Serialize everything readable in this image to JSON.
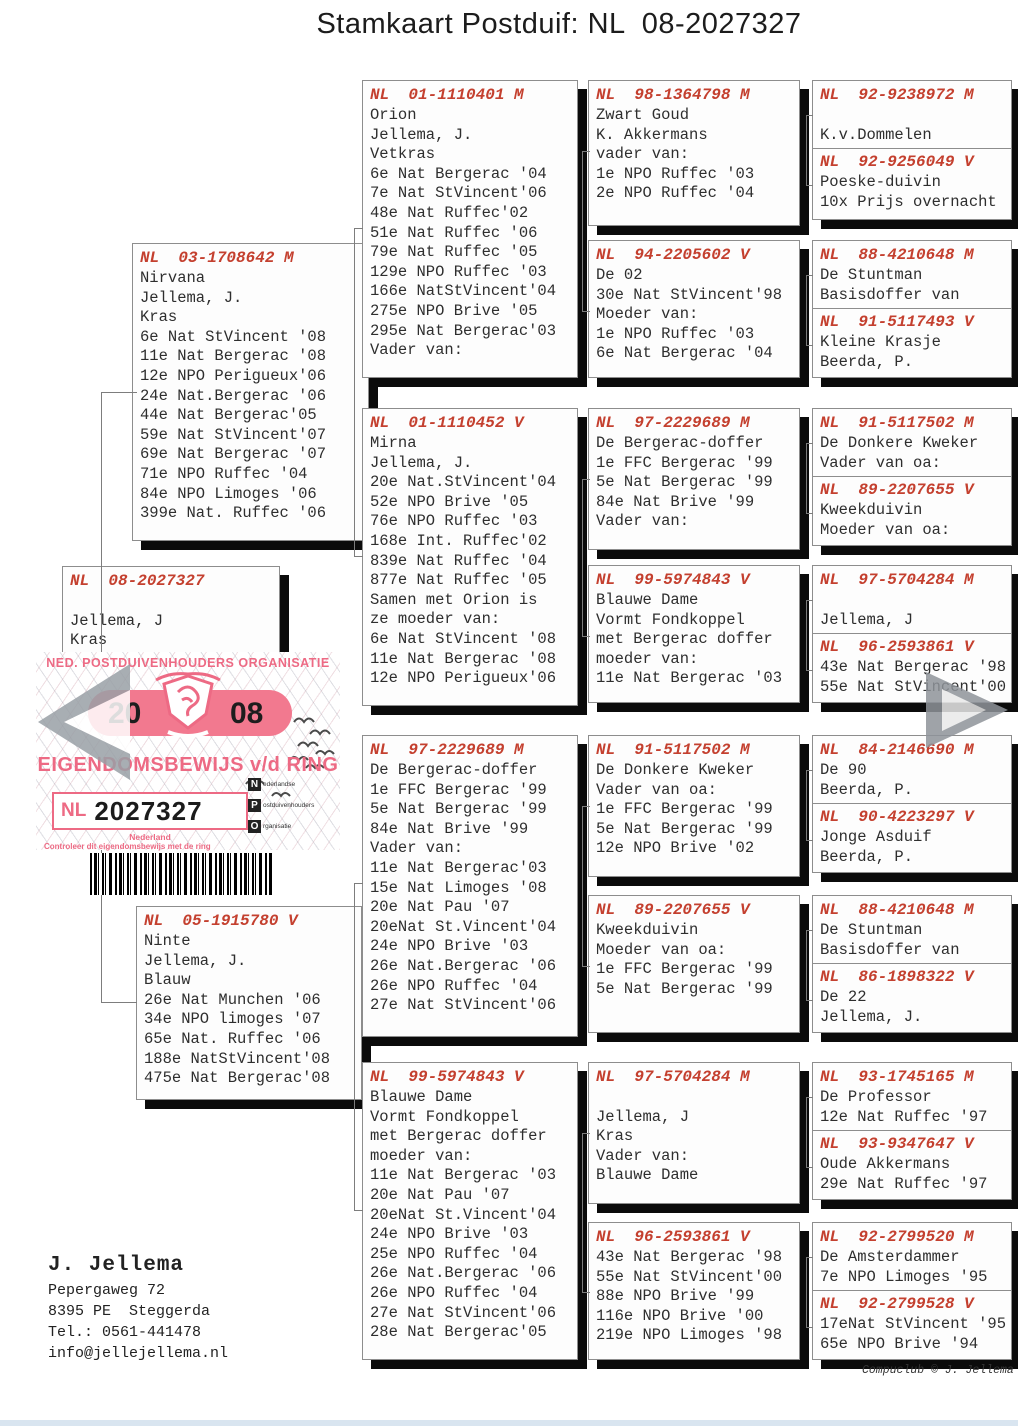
{
  "title": "Stamkaart Postduif: NL  08-2027327",
  "colors": {
    "ring_header": "#c4402f",
    "stamp_pink": "#ed6a84",
    "pill_pink": "#f2798f"
  },
  "pedigree": {
    "cards": [
      {
        "sections": [
          {
            "header": "NL  03-1708642 M",
            "lines": [
              "Nirvana",
              "Jellema, J.",
              "Kras",
              "6e Nat StVincent '08",
              "11e Nat Bergerac '08",
              "12e NPO Perigueux'06",
              "24e Nat.Bergerac '06",
              "44e Nat Bergerac'05",
              "59e Nat StVincent'07",
              "69e Nat Bergerac '07",
              "71e NPO Ruffec '04",
              "84e NPO Limoges '06",
              "399e Nat. Ruffec '06"
            ]
          }
        ]
      },
      {
        "sections": [
          {
            "header": "NL  08-2027327",
            "lines": [
              "",
              "Jellema, J",
              "Kras"
            ]
          }
        ]
      },
      {
        "sections": [
          {
            "header": "NL  05-1915780 V",
            "lines": [
              "Ninte",
              "Jellema, J.",
              "Blauw",
              "26e Nat Munchen '06",
              "34e NPO limoges '07",
              "65e Nat. Ruffec '06",
              "188e NatStVincent'08",
              "475e Nat Bergerac'08"
            ]
          }
        ]
      },
      {
        "sections": [
          {
            "header": "NL  01-1110401 M",
            "lines": [
              "Orion",
              "Jellema, J.",
              "Vetkras",
              "6e Nat Bergerac '04",
              "7e Nat StVincent'06",
              "48e Nat Ruffec'02",
              "51e Nat Ruffec '06",
              "79e Nat Ruffec '05",
              "129e NPO Ruffec '03",
              "166e NatStVincent'04",
              "275e NPO Brive '05",
              "295e Nat Bergerac'03",
              "Vader van:"
            ]
          }
        ]
      },
      {
        "sections": [
          {
            "header": "NL  01-1110452 V",
            "lines": [
              "Mirna",
              "Jellema, J.",
              "20e Nat.StVincent'04",
              "52e NPO Brive '05",
              "76e NPO Ruffec '03",
              "168e Int. Ruffec'02",
              "839e Nat Ruffec '04",
              "877e Nat Ruffec '05",
              "Samen met Orion is",
              "ze moeder van:",
              "6e Nat StVincent '08",
              "11e Nat Bergerac '08",
              "12e NPO Perigueux'06"
            ]
          }
        ]
      },
      {
        "sections": [
          {
            "header": "NL  97-2229689 M",
            "lines": [
              "De Bergerac-doffer",
              "1e FFC Bergerac '99",
              "5e Nat Bergerac '99",
              "84e Nat Brive '99",
              "Vader van:",
              "11e Nat Bergerac'03",
              "15e Nat Limoges '08",
              "20e Nat Pau '07",
              "20eNat St.Vincent'04",
              "24e NPO Brive '03",
              "26e Nat.Bergerac '06",
              "26e NPO Ruffec '04",
              "27e Nat StVincent'06"
            ]
          }
        ]
      },
      {
        "sections": [
          {
            "header": "NL  99-5974843 V",
            "lines": [
              "Blauwe Dame",
              "Vormt Fondkoppel",
              "met Bergerac doffer",
              "moeder van:",
              "11e Nat Bergerac '03",
              "20e Nat Pau '07",
              "20eNat St.Vincent'04",
              "24e NPO Brive '03",
              "25e NPO Ruffec '04",
              "26e Nat.Bergerac '06",
              "26e NPO Ruffec '04",
              "27e Nat StVincent'06",
              "28e Nat Bergerac'05"
            ]
          }
        ]
      },
      {
        "sections": [
          {
            "header": "NL  98-1364798 M",
            "lines": [
              "Zwart Goud",
              "K. Akkermans",
              "vader van:",
              "1e NPO Ruffec '03",
              "2e NPO Ruffec '04"
            ]
          }
        ]
      },
      {
        "sections": [
          {
            "header": "NL  94-2205602 V",
            "lines": [
              "De 02",
              "30e Nat StVincent'98",
              "Moeder van:",
              "1e NPO Ruffec '03",
              "6e Nat Bergerac '04"
            ]
          }
        ]
      },
      {
        "sections": [
          {
            "header": "NL  97-2229689 M",
            "lines": [
              "De Bergerac-doffer",
              "1e FFC Bergerac '99",
              "5e Nat Bergerac '99",
              "84e Nat Brive '99",
              "Vader van:"
            ]
          }
        ]
      },
      {
        "sections": [
          {
            "header": "NL  99-5974843 V",
            "lines": [
              "Blauwe Dame",
              "Vormt Fondkoppel",
              "met Bergerac doffer",
              "moeder van:",
              "11e Nat Bergerac '03"
            ]
          }
        ]
      },
      {
        "sections": [
          {
            "header": "NL  91-5117502 M",
            "lines": [
              "De Donkere Kweker",
              "Vader van oa:",
              "1e FFC Bergerac '99",
              "5e Nat Bergerac '99",
              "12e NPO Brive '02"
            ]
          }
        ]
      },
      {
        "sections": [
          {
            "header": "NL  89-2207655 V",
            "lines": [
              "Kweekduivin",
              "Moeder van oa:",
              "1e FFC Bergerac '99",
              "5e Nat Bergerac '99"
            ]
          }
        ]
      },
      {
        "sections": [
          {
            "header": "NL  97-5704284 M",
            "lines": [
              "",
              "Jellema, J",
              "Kras",
              "Vader van:",
              "Blauwe Dame"
            ]
          }
        ]
      },
      {
        "sections": [
          {
            "header": "NL  96-2593861 V",
            "lines": [
              "43e Nat Bergerac '98",
              "55e Nat StVincent'00",
              "88e NPO Brive '99",
              "116e NPO Brive '00",
              "219e NPO Limoges '98"
            ]
          }
        ]
      },
      {
        "sections": [
          {
            "header": "NL  92-9238972 M",
            "lines": [
              "",
              "K.v.Dommelen"
            ]
          },
          {
            "header": "NL  92-9256049 V",
            "lines": [
              "Poeske-duivin",
              "10x Prijs overnacht"
            ]
          }
        ]
      },
      {
        "sections": [
          {
            "header": "NL  88-4210648 M",
            "lines": [
              "De Stuntman",
              "Basisdoffer van"
            ]
          },
          {
            "header": "NL  91-5117493 V",
            "lines": [
              "Kleine Krasje",
              "Beerda, P."
            ]
          }
        ]
      },
      {
        "sections": [
          {
            "header": "NL  91-5117502 M",
            "lines": [
              "De Donkere Kweker",
              "Vader van oa:"
            ]
          },
          {
            "header": "NL  89-2207655 V",
            "lines": [
              "Kweekduivin",
              "Moeder van oa:"
            ]
          }
        ]
      },
      {
        "sections": [
          {
            "header": "NL  97-5704284 M",
            "lines": [
              "",
              "Jellema, J"
            ]
          },
          {
            "header": "NL  96-2593861 V",
            "lines": [
              "43e Nat Bergerac '98",
              "55e Nat StVincent'00"
            ]
          }
        ]
      },
      {
        "sections": [
          {
            "header": "NL  84-2146690 M",
            "lines": [
              "De 90",
              "Beerda, P."
            ]
          },
          {
            "header": "NL  90-4223297 V",
            "lines": [
              "Jonge Asduif",
              "Beerda, P."
            ]
          }
        ]
      },
      {
        "sections": [
          {
            "header": "NL  88-4210648 M",
            "lines": [
              "De Stuntman",
              "Basisdoffer van"
            ]
          },
          {
            "header": "NL  86-1898322 V",
            "lines": [
              "De 22",
              "Jellema, J."
            ]
          }
        ]
      },
      {
        "sections": [
          {
            "header": "NL  93-1745165 M",
            "lines": [
              "De Professor",
              "12e Nat Ruffec '97"
            ]
          },
          {
            "header": "NL  93-9347647 V",
            "lines": [
              "Oude Akkermans",
              "29e Nat Ruffec '97"
            ]
          }
        ]
      },
      {
        "sections": [
          {
            "header": "NL  92-2799520 M",
            "lines": [
              "De Amsterdammer",
              "7e NPO Limoges '95"
            ]
          },
          {
            "header": "NL  92-2799528 V",
            "lines": [
              "17eNat StVincent '95",
              "65e NPO Brive '94"
            ]
          }
        ]
      }
    ]
  },
  "stamp": {
    "org": "NED. POSTDUIVENHOUDERS ORGANISATIE",
    "year_left": "20",
    "year_right": "08",
    "label": "EIGENDOMSBEWIJS v/d RING",
    "country": "NL",
    "ring": "2027327",
    "country_small": "Nederland",
    "note": "Controleer dit eigendomsbewijs met de ring",
    "npo": [
      {
        "letter": "N",
        "rest": "ederlandse"
      },
      {
        "letter": "P",
        "rest": "ostduivenhouders"
      },
      {
        "letter": "O",
        "rest": "rganisatie"
      }
    ]
  },
  "owner": {
    "name": "J. Jellema",
    "address1": "Pepergaweg 72",
    "address2": "8395 PE  Steggerda",
    "phone": "Tel.: 0561-441478",
    "email": "info@jellejellema.nl"
  },
  "footer": {
    "credit": "Compuclub © J. Jellema"
  }
}
